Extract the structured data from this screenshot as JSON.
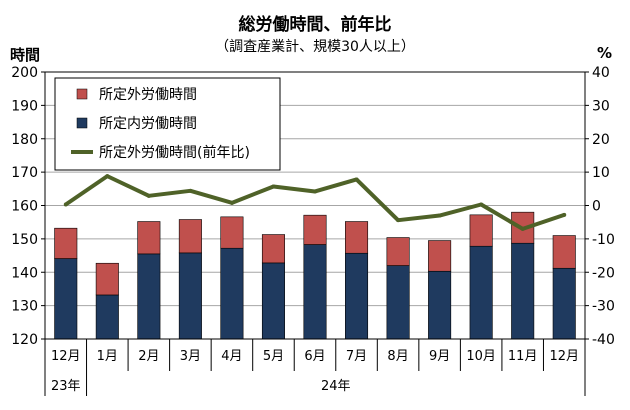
{
  "chart_data": {
    "type": "bar",
    "title": "総労働時間、前年比",
    "subtitle": "（調査産業計、規模30人以上）",
    "ylabel_left": "時間",
    "ylabel_right": "%",
    "categories": [
      "12月",
      "1月",
      "2月",
      "3月",
      "4月",
      "5月",
      "6月",
      "7月",
      "8月",
      "9月",
      "10月",
      "11月",
      "12月"
    ],
    "year_labels": [
      {
        "label": "23年",
        "start": 0,
        "end": 0
      },
      {
        "label": "24年",
        "start": 1,
        "end": 12
      }
    ],
    "y_left": {
      "min": 120,
      "max": 200,
      "step": 10
    },
    "y_right": {
      "min": -40,
      "max": 40,
      "step": 10
    },
    "grid": true,
    "legend_position": "top-left",
    "series": [
      {
        "name": "所定外労働時間",
        "type": "stacked-bar",
        "color": "#c0504d",
        "values": [
          9.1,
          9.5,
          9.7,
          10.0,
          9.4,
          8.5,
          8.8,
          9.5,
          8.4,
          9.2,
          9.4,
          9.3,
          9.8
        ]
      },
      {
        "name": "所定内労働時間",
        "type": "stacked-bar",
        "color": "#1f3a5f",
        "values": [
          144.1,
          133.2,
          145.5,
          145.8,
          147.2,
          142.8,
          148.3,
          145.7,
          142.0,
          140.3,
          147.8,
          148.7,
          141.2
        ]
      },
      {
        "name": "所定外労働時間(前年比)",
        "type": "line",
        "axis": "right",
        "color": "#4f6228",
        "values": [
          0.3,
          8.8,
          2.9,
          4.4,
          0.8,
          5.7,
          4.2,
          7.8,
          -4.4,
          -3.0,
          0.3,
          -7.0,
          -2.8
        ]
      }
    ]
  }
}
